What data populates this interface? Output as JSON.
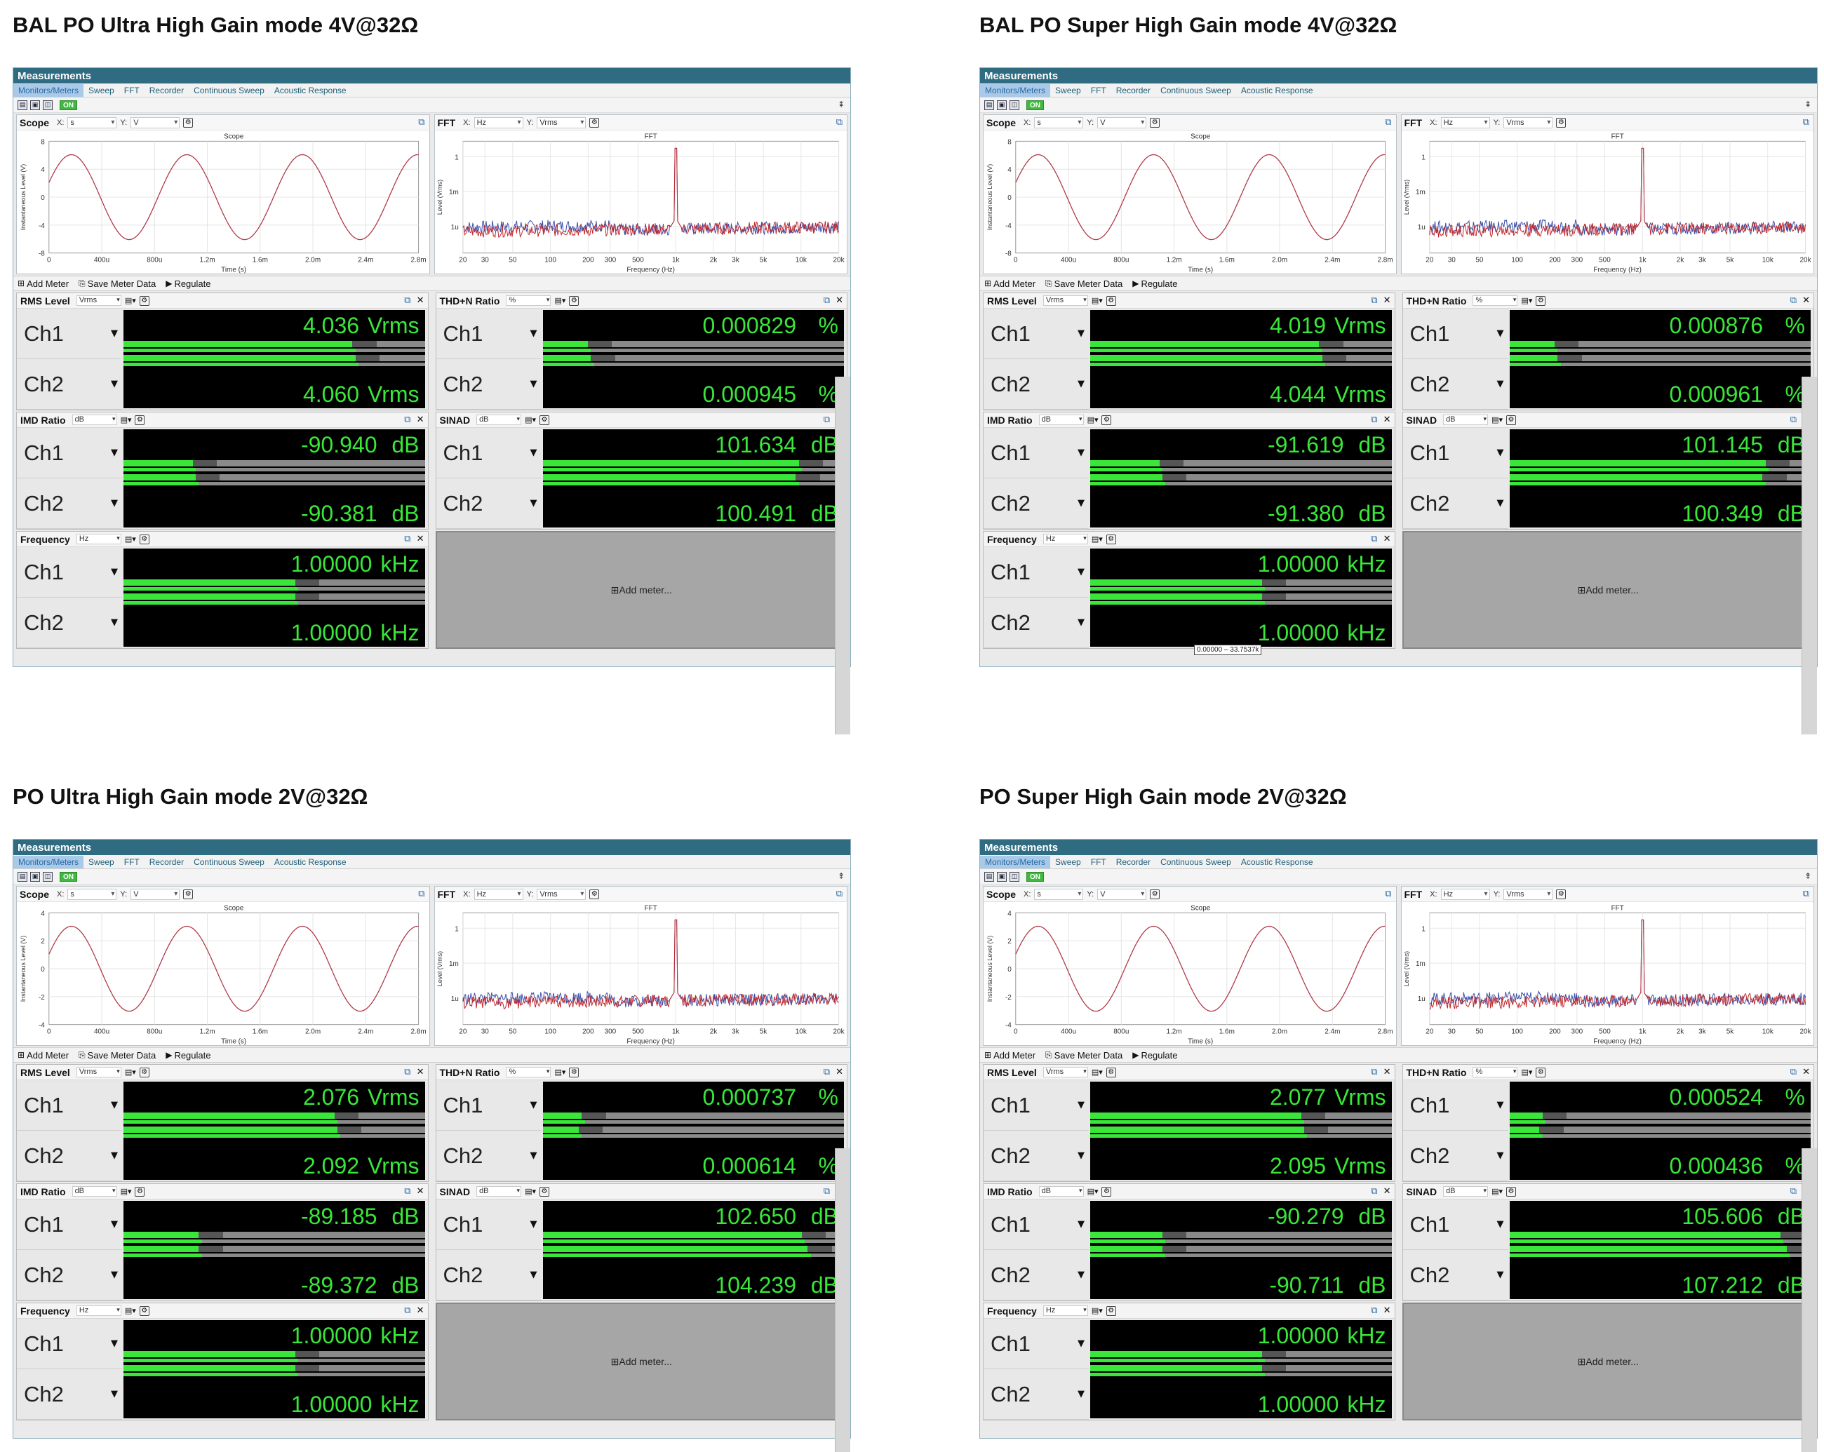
{
  "common": {
    "window_title": "Measurements",
    "tabs": [
      "Monitors/Meters",
      "Sweep",
      "FFT",
      "Recorder",
      "Continuous Sweep",
      "Acoustic Response"
    ],
    "on_label": "ON",
    "scope": {
      "name": "Scope",
      "x_label": "X:",
      "x_unit": "s",
      "y_label": "Y:",
      "y_unit": "V",
      "chart_title": "Scope",
      "xlabel": "Time (s)",
      "ylabel": "Instantaneous Level (V)"
    },
    "fft": {
      "name": "FFT",
      "x_label": "X:",
      "x_unit": "Hz",
      "y_label": "Y:",
      "y_unit": "Vrms",
      "chart_title": "FFT",
      "xlabel": "Frequency (Hz)",
      "ylabel": "Level (Vrms)"
    },
    "meter_toolbar": {
      "add_meter": "Add Meter",
      "save_meter_data": "Save Meter Data",
      "regulate": "Regulate"
    },
    "ch1": "Ch1",
    "ch2": "Ch2",
    "add_meter_panel": "Add meter..."
  },
  "colors": {
    "title_bar": "#2f6c82",
    "meter_bg": "#000000",
    "meter_green": "#39e639",
    "trace_red": "#c0282d",
    "trace_blue": "#3b4fa8"
  },
  "chart_data": [
    {
      "type": "line",
      "title": "Scope",
      "xlabel": "Time (s)",
      "ylabel": "Instantaneous Level (V)",
      "x_ticks": [
        "0",
        "400u",
        "800u",
        "1.2m",
        "1.6m",
        "2.0m",
        "2.4m",
        "2.8m"
      ],
      "y_ticks": [
        "-8",
        "-4",
        "0",
        "4",
        "8"
      ],
      "series": [
        {
          "name": "",
          "frequency_hz": 1000,
          "amplitude_v": 5.7
        }
      ]
    },
    {
      "type": "line",
      "title": "FFT",
      "xlabel": "Frequency (Hz)",
      "ylabel": "Level (Vrms)",
      "x_ticks": [
        "20",
        "30",
        "50",
        "100",
        "200",
        "300",
        "500",
        "1k",
        "2k",
        "3k",
        "5k",
        "10k",
        "20k"
      ],
      "y_ticks": [
        "1",
        "1m",
        "1u"
      ],
      "peak_hz": 1000
    }
  ],
  "sections": [
    {
      "title": "BAL PO Ultra High Gain mode 4V@32Ω",
      "scope_yticks": [
        "8",
        "4",
        "0",
        "-4",
        "-8"
      ],
      "meters": {
        "rms": {
          "name": "RMS Level",
          "unit_sel": "Vrms",
          "ch1": "4.036",
          "ch2": "4.060",
          "unit": "Vrms",
          "fill1": 0.76,
          "fill2": 0.77
        },
        "thd": {
          "name": "THD+N Ratio",
          "unit_sel": "%",
          "ch1": "0.000829",
          "ch2": "0.000945",
          "unit": "%",
          "fill1": 0.15,
          "fill2": 0.16
        },
        "imd": {
          "name": "IMD Ratio",
          "unit_sel": "dB",
          "ch1": "-90.940",
          "ch2": "-90.381",
          "unit": "dB",
          "fill1": 0.23,
          "fill2": 0.24
        },
        "sinad": {
          "name": "SINAD",
          "unit_sel": "dB",
          "ch1": "101.634",
          "ch2": "100.491",
          "unit": "dB",
          "fill1": 0.85,
          "fill2": 0.84
        },
        "freq": {
          "name": "Frequency",
          "unit_sel": "Hz",
          "ch1": "1.00000",
          "ch2": "1.00000",
          "unit": "kHz",
          "fill1": 0.57,
          "fill2": 0.57
        }
      }
    },
    {
      "title": "BAL PO Super High Gain mode 4V@32Ω",
      "scope_yticks": [
        "8",
        "4",
        "0",
        "-4",
        "-8"
      ],
      "tooltip": "0.00000 – 33.7537k",
      "meters": {
        "rms": {
          "name": "RMS Level",
          "unit_sel": "Vrms",
          "ch1": "4.019",
          "ch2": "4.044",
          "unit": "Vrms",
          "fill1": 0.76,
          "fill2": 0.77
        },
        "thd": {
          "name": "THD+N Ratio",
          "unit_sel": "%",
          "ch1": "0.000876",
          "ch2": "0.000961",
          "unit": "%",
          "fill1": 0.15,
          "fill2": 0.16
        },
        "imd": {
          "name": "IMD Ratio",
          "unit_sel": "dB",
          "ch1": "-91.619",
          "ch2": "-91.380",
          "unit": "dB",
          "fill1": 0.23,
          "fill2": 0.24
        },
        "sinad": {
          "name": "SINAD",
          "unit_sel": "dB",
          "ch1": "101.145",
          "ch2": "100.349",
          "unit": "dB",
          "fill1": 0.85,
          "fill2": 0.84
        },
        "freq": {
          "name": "Frequency",
          "unit_sel": "Hz",
          "ch1": "1.00000",
          "ch2": "1.00000",
          "unit": "kHz",
          "fill1": 0.57,
          "fill2": 0.57
        }
      }
    },
    {
      "title": "PO Ultra High Gain mode 2V@32Ω",
      "scope_yticks": [
        "4",
        "2",
        "0",
        "-2",
        "-4"
      ],
      "meters": {
        "rms": {
          "name": "RMS Level",
          "unit_sel": "Vrms",
          "ch1": "2.076",
          "ch2": "2.092",
          "unit": "Vrms",
          "fill1": 0.7,
          "fill2": 0.71
        },
        "thd": {
          "name": "THD+N Ratio",
          "unit_sel": "%",
          "ch1": "0.000737",
          "ch2": "0.000614",
          "unit": "%",
          "fill1": 0.13,
          "fill2": 0.12
        },
        "imd": {
          "name": "IMD Ratio",
          "unit_sel": "dB",
          "ch1": "-89.185",
          "ch2": "-89.372",
          "unit": "dB",
          "fill1": 0.25,
          "fill2": 0.25
        },
        "sinad": {
          "name": "SINAD",
          "unit_sel": "dB",
          "ch1": "102.650",
          "ch2": "104.239",
          "unit": "dB",
          "fill1": 0.86,
          "fill2": 0.88
        },
        "freq": {
          "name": "Frequency",
          "unit_sel": "Hz",
          "ch1": "1.00000",
          "ch2": "1.00000",
          "unit": "kHz",
          "fill1": 0.57,
          "fill2": 0.57
        }
      }
    },
    {
      "title": "PO Super High Gain mode 2V@32Ω",
      "scope_yticks": [
        "4",
        "2",
        "0",
        "-2",
        "-4"
      ],
      "meters": {
        "rms": {
          "name": "RMS Level",
          "unit_sel": "Vrms",
          "ch1": "2.077",
          "ch2": "2.095",
          "unit": "Vrms",
          "fill1": 0.7,
          "fill2": 0.71
        },
        "thd": {
          "name": "THD+N Ratio",
          "unit_sel": "%",
          "ch1": "0.000524",
          "ch2": "0.000436",
          "unit": "%",
          "fill1": 0.11,
          "fill2": 0.1
        },
        "imd": {
          "name": "IMD Ratio",
          "unit_sel": "dB",
          "ch1": "-90.279",
          "ch2": "-90.711",
          "unit": "dB",
          "fill1": 0.24,
          "fill2": 0.24
        },
        "sinad": {
          "name": "SINAD",
          "unit_sel": "dB",
          "ch1": "105.606",
          "ch2": "107.212",
          "unit": "dB",
          "fill1": 0.9,
          "fill2": 0.92
        },
        "freq": {
          "name": "Frequency",
          "unit_sel": "Hz",
          "ch1": "1.00000",
          "ch2": "1.00000",
          "unit": "kHz",
          "fill1": 0.57,
          "fill2": 0.57
        }
      }
    }
  ]
}
